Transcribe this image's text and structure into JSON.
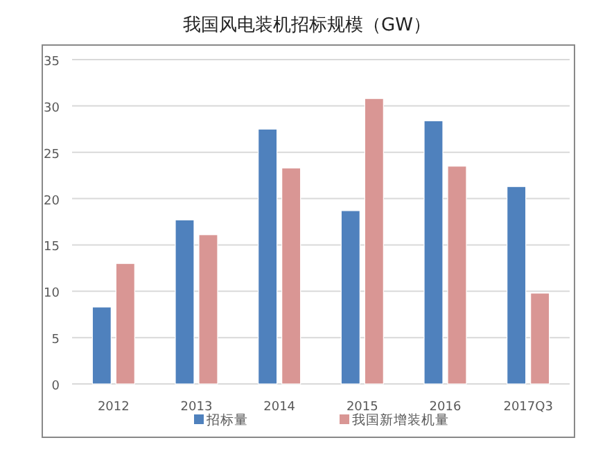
{
  "chart_data": {
    "type": "bar",
    "title": "我国风电装机招标规模（GW）",
    "categories": [
      "2012",
      "2013",
      "2014",
      "2015",
      "2016",
      "2017Q3"
    ],
    "series": [
      {
        "name": "招标量",
        "color": "#4f81bd",
        "values": [
          8.3,
          17.7,
          27.5,
          18.7,
          28.4,
          21.3
        ]
      },
      {
        "name": "我国新增装机量",
        "color": "#d99694",
        "values": [
          13.0,
          16.1,
          23.3,
          30.8,
          23.5,
          9.8
        ]
      }
    ],
    "ylim": [
      0,
      35
    ],
    "yticks": [
      0,
      5,
      10,
      15,
      20,
      25,
      30,
      35
    ],
    "grid": "y",
    "legend": "bottom"
  }
}
